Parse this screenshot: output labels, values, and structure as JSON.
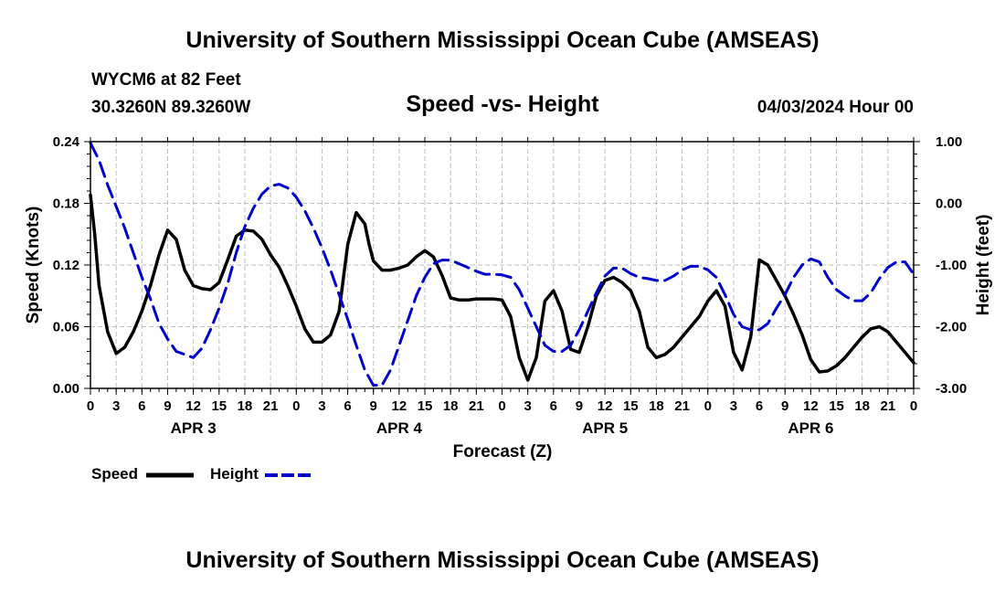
{
  "header": {
    "title": "University of Southern Mississippi Ocean Cube (AMSEAS)",
    "station": "WYCM6 at 82 Feet",
    "coords": "30.3260N  89.3260W",
    "date": "04/03/2024 Hour 00",
    "footer_title": "University of Southern Mississippi Ocean Cube (AMSEAS)"
  },
  "colors": {
    "speed": "#000000",
    "height": "#0000cc",
    "grid": "#bdbdbd"
  },
  "chart_data": {
    "type": "line",
    "title": "Speed -vs- Height",
    "xlabel": "Forecast (Z)",
    "ylabel": "Speed (Knots)",
    "y2label": "Height (feet)",
    "x_range": [
      0,
      96
    ],
    "ylim": [
      0,
      0.24
    ],
    "y2lim": [
      -3.0,
      1.0
    ],
    "y_ticks": [
      "0.00",
      "0.06",
      "0.12",
      "0.18",
      "0.24"
    ],
    "y2_ticks": [
      "-3.00",
      "-2.00",
      "-1.00",
      "0.00",
      "1.00"
    ],
    "x_tick_labels": [
      "0",
      "3",
      "6",
      "9",
      "12",
      "15",
      "18",
      "21",
      "0",
      "3",
      "6",
      "9",
      "12",
      "15",
      "18",
      "21",
      "0",
      "3",
      "6",
      "9",
      "12",
      "15",
      "18",
      "21",
      "0",
      "3",
      "6",
      "9",
      "12",
      "15",
      "18",
      "21",
      "0"
    ],
    "day_labels": [
      "APR 3",
      "APR 4",
      "APR 5",
      "APR 6"
    ],
    "legend": {
      "speed": "Speed",
      "height": "Height"
    },
    "series": [
      {
        "name": "Speed",
        "axis": "left",
        "style": "solid",
        "x": [
          0,
          0.5,
          1,
          2,
          3,
          4,
          5,
          6,
          7,
          8,
          9,
          10,
          11,
          12,
          13,
          14,
          15,
          16,
          17,
          18,
          19,
          20,
          21,
          22,
          23,
          24,
          25,
          26,
          27,
          28,
          29,
          30,
          31,
          32,
          32.5,
          33,
          34,
          35,
          36,
          37,
          38,
          39,
          40,
          41,
          42,
          43,
          44,
          45,
          46,
          47,
          48,
          49,
          50,
          51,
          52,
          53,
          54,
          55,
          56,
          57,
          58,
          59,
          60,
          61,
          62,
          63,
          64,
          65,
          66,
          67,
          68,
          69,
          70,
          71,
          72,
          73,
          74,
          75,
          76,
          77,
          78,
          79,
          80,
          81,
          82,
          83,
          84,
          85,
          86,
          87,
          88,
          89,
          90,
          91,
          92,
          93,
          94,
          95,
          96
        ],
        "y": [
          0.188,
          0.15,
          0.1,
          0.055,
          0.034,
          0.04,
          0.055,
          0.075,
          0.1,
          0.13,
          0.154,
          0.145,
          0.115,
          0.1,
          0.097,
          0.096,
          0.103,
          0.125,
          0.148,
          0.154,
          0.153,
          0.145,
          0.13,
          0.118,
          0.1,
          0.08,
          0.058,
          0.045,
          0.045,
          0.052,
          0.075,
          0.14,
          0.171,
          0.16,
          0.14,
          0.124,
          0.115,
          0.115,
          0.117,
          0.12,
          0.128,
          0.134,
          0.128,
          0.11,
          0.088,
          0.086,
          0.086,
          0.087,
          0.087,
          0.087,
          0.086,
          0.07,
          0.03,
          0.008,
          0.03,
          0.085,
          0.095,
          0.075,
          0.038,
          0.035,
          0.06,
          0.09,
          0.105,
          0.108,
          0.103,
          0.095,
          0.075,
          0.04,
          0.03,
          0.033,
          0.04,
          0.05,
          0.06,
          0.07,
          0.085,
          0.095,
          0.08,
          0.035,
          0.018,
          0.05,
          0.125,
          0.12,
          0.105,
          0.09,
          0.072,
          0.052,
          0.028,
          0.016,
          0.017,
          0.022,
          0.03,
          0.04,
          0.05,
          0.058,
          0.06,
          0.055,
          0.045,
          0.035,
          0.025
        ]
      },
      {
        "name": "Height",
        "axis": "right",
        "style": "dashed",
        "x": [
          0,
          1,
          2,
          3,
          4,
          5,
          6,
          7,
          8,
          9,
          10,
          11,
          12,
          13,
          14,
          15,
          16,
          17,
          18,
          19,
          20,
          21,
          22,
          23,
          24,
          25,
          26,
          27,
          28,
          29,
          30,
          31,
          32,
          33,
          34,
          35,
          36,
          37,
          38,
          39,
          40,
          41,
          42,
          43,
          44,
          45,
          46,
          47,
          48,
          49,
          50,
          51,
          52,
          53,
          54,
          55,
          56,
          57,
          58,
          59,
          60,
          61,
          62,
          63,
          64,
          65,
          66,
          67,
          68,
          69,
          70,
          71,
          72,
          73,
          74,
          75,
          76,
          77,
          78,
          79,
          80,
          81,
          82,
          83,
          84,
          85,
          86,
          87,
          88,
          89,
          90,
          91,
          92,
          93,
          94,
          95,
          96
        ],
        "y": [
          0.98,
          0.7,
          0.3,
          -0.05,
          -0.4,
          -0.8,
          -1.2,
          -1.55,
          -1.95,
          -2.2,
          -2.4,
          -2.45,
          -2.5,
          -2.35,
          -2.05,
          -1.7,
          -1.3,
          -0.8,
          -0.38,
          -0.08,
          0.15,
          0.28,
          0.31,
          0.25,
          0.1,
          -0.12,
          -0.4,
          -0.72,
          -1.08,
          -1.48,
          -1.88,
          -2.3,
          -2.7,
          -2.95,
          -2.95,
          -2.7,
          -2.3,
          -1.9,
          -1.5,
          -1.2,
          -0.98,
          -0.92,
          -0.92,
          -0.98,
          -1.04,
          -1.1,
          -1.15,
          -1.15,
          -1.16,
          -1.2,
          -1.4,
          -1.7,
          -2.0,
          -2.3,
          -2.4,
          -2.4,
          -2.3,
          -2.05,
          -1.75,
          -1.45,
          -1.18,
          -1.05,
          -1.05,
          -1.14,
          -1.2,
          -1.22,
          -1.25,
          -1.25,
          -1.18,
          -1.08,
          -1.02,
          -1.02,
          -1.08,
          -1.2,
          -1.48,
          -1.8,
          -2.0,
          -2.05,
          -2.05,
          -1.95,
          -1.7,
          -1.48,
          -1.2,
          -1.0,
          -0.9,
          -0.95,
          -1.2,
          -1.4,
          -1.5,
          -1.58,
          -1.58,
          -1.45,
          -1.22,
          -1.04,
          -0.95,
          -0.95,
          -1.15
        ]
      }
    ]
  }
}
